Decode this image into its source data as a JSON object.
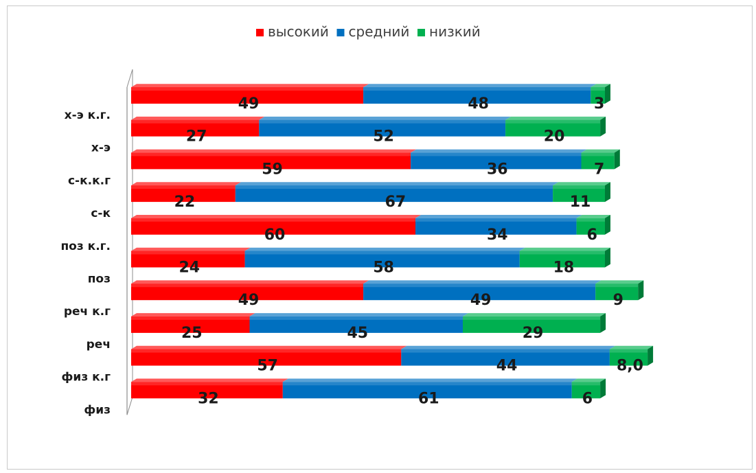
{
  "chart_data": {
    "type": "bar",
    "orientation": "horizontal",
    "stacked": true,
    "percent_stacked": true,
    "categories": [
      "х-э к.г.",
      "х-э",
      "с-к.к.г",
      "с-к",
      "поз к.г.",
      "поз",
      "реч к.г",
      "реч",
      "физ к.г",
      "физ"
    ],
    "series": [
      {
        "name": "высокий",
        "color": "#ff0000",
        "values": [
          49,
          27,
          59,
          22,
          60,
          24,
          49,
          25,
          57,
          32
        ]
      },
      {
        "name": "средний",
        "color": "#0070c0",
        "values": [
          48,
          52,
          36,
          67,
          34,
          58,
          49,
          45,
          44,
          61
        ]
      },
      {
        "name": "низкий",
        "color": "#00b050",
        "values": [
          3,
          20,
          7,
          11,
          6,
          18,
          9,
          29,
          8,
          6
        ]
      }
    ],
    "value_labels": [
      [
        "49",
        "48",
        "3"
      ],
      [
        "27",
        "52",
        "20"
      ],
      [
        "59",
        "36",
        "7"
      ],
      [
        "22",
        "67",
        "11"
      ],
      [
        "60",
        "34",
        "6"
      ],
      [
        "24",
        "58",
        "18"
      ],
      [
        "49",
        "49",
        "9"
      ],
      [
        "25",
        "45",
        "29"
      ],
      [
        "57",
        "44",
        "8,0"
      ],
      [
        "32",
        "61",
        "6"
      ]
    ],
    "legend_position": "top",
    "grid": false,
    "style": "3d"
  }
}
